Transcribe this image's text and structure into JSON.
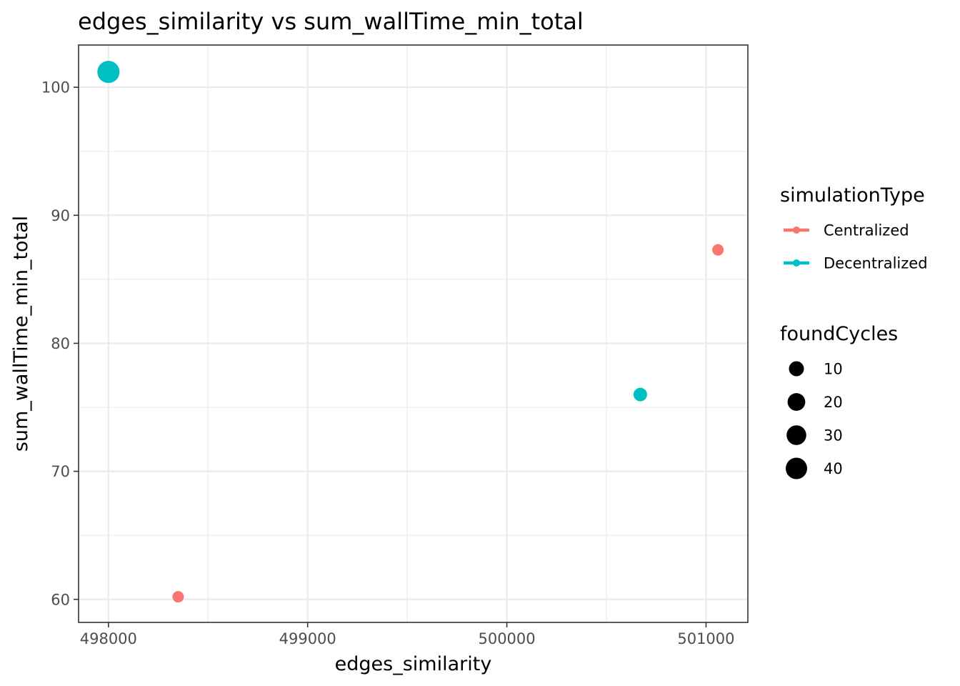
{
  "chart_data": {
    "type": "scatter",
    "title": "edges_similarity  vs  sum_wallTime_min_total",
    "xlabel": "edges_similarity",
    "ylabel": "sum_wallTime_min_total",
    "xlim": [
      497850,
      501210
    ],
    "ylim": [
      58.2,
      103.3
    ],
    "x_major_ticks": [
      498000,
      499000,
      500000,
      501000
    ],
    "x_tick_labels": [
      "498000",
      "499000",
      "500000",
      "501000"
    ],
    "y_major_ticks": [
      60,
      70,
      80,
      90,
      100
    ],
    "y_tick_labels": [
      "60",
      "70",
      "80",
      "90",
      "100"
    ],
    "x_minor_ticks": [
      498500,
      499500,
      500500
    ],
    "y_minor_ticks": [
      65,
      75,
      85,
      95
    ],
    "grid": true,
    "colors": {
      "Centralized": "#F8766D",
      "Decentralized": "#00BFC4",
      "grid": "#ebebeb",
      "panel_border": "#333333"
    },
    "points": [
      {
        "series": "Decentralized",
        "x": 498000,
        "y": 101.2,
        "foundCycles": 45
      },
      {
        "series": "Centralized",
        "x": 498350,
        "y": 60.2,
        "foundCycles": 2
      },
      {
        "series": "Decentralized",
        "x": 500670,
        "y": 76.0,
        "foundCycles": 6
      },
      {
        "series": "Centralized",
        "x": 501060,
        "y": 87.3,
        "foundCycles": 2
      }
    ],
    "legend": {
      "placement": "right",
      "color": {
        "title": "simulationType",
        "entries": [
          "Centralized",
          "Decentralized"
        ]
      },
      "size": {
        "title": "foundCycles",
        "values": [
          10,
          20,
          30,
          40
        ],
        "labels": [
          "10",
          "20",
          "30",
          "40"
        ]
      }
    }
  }
}
